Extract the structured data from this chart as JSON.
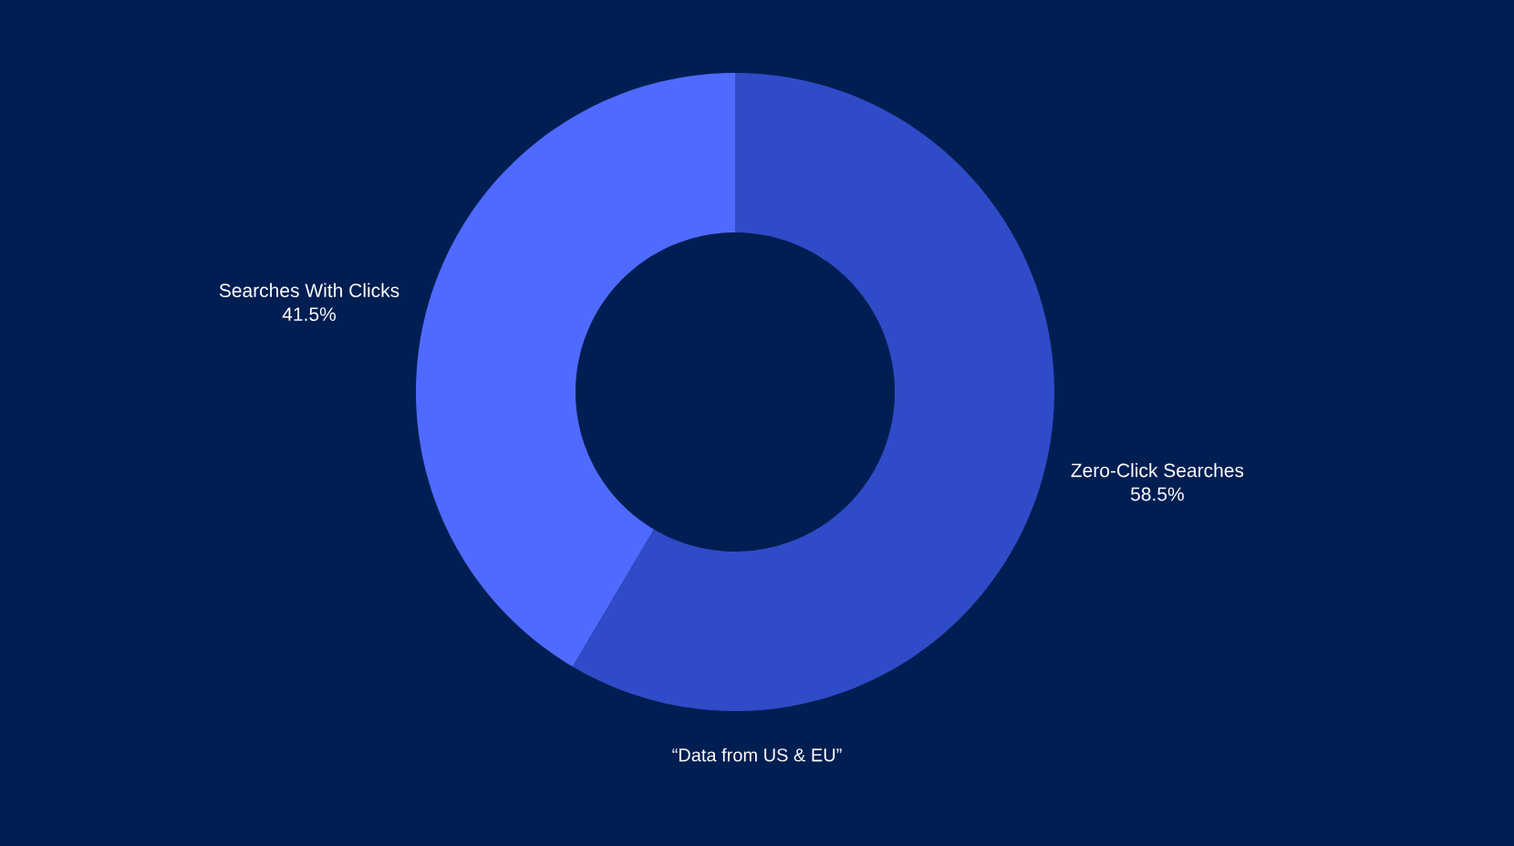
{
  "chart_data": {
    "type": "donut",
    "categories": [
      "Zero-Click Searches",
      "Searches With Clicks"
    ],
    "values": [
      58.5,
      41.5
    ],
    "colors": [
      "#2f4bc7",
      "#4f6bff"
    ],
    "value_labels": [
      "58.5%",
      "41.5%"
    ],
    "annotations": [
      "“Data from US & EU”"
    ]
  }
}
